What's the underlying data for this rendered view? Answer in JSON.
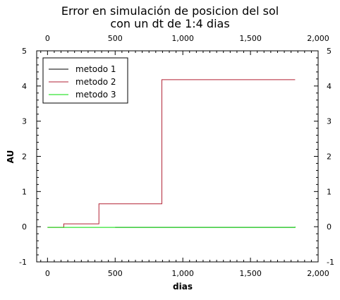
{
  "chart_data": {
    "type": "line",
    "title_line1": "Error en simulación de posicion del sol",
    "title_line2": "con un dt de 1:4 dias",
    "xlabel": "dias",
    "ylabel": "AU",
    "xlim": [
      -80,
      2000
    ],
    "ylim": [
      -1,
      5
    ],
    "x_ticks": [
      0,
      500,
      1000,
      1500,
      2000
    ],
    "x_tick_labels": [
      "0",
      "500",
      "1,000",
      "1,500",
      "2,000"
    ],
    "y_ticks": [
      -1,
      0,
      1,
      2,
      3,
      4,
      5
    ],
    "y_tick_labels": [
      "-1",
      "0",
      "1",
      "2",
      "3",
      "4",
      "5"
    ],
    "grid": false,
    "legend_position": "top-left",
    "series": [
      {
        "name": "metodo 1",
        "color": "#000000",
        "step": true,
        "x": [
          500,
          1830
        ],
        "y": [
          -0.02,
          -0.02
        ]
      },
      {
        "name": "metodo 2",
        "color": "#b22234",
        "step": true,
        "x": [
          0,
          120,
          380,
          845,
          1830
        ],
        "y": [
          -0.02,
          0.08,
          0.65,
          4.18,
          4.18
        ]
      },
      {
        "name": "metodo 3",
        "color": "#00dd00",
        "step": true,
        "x": [
          0,
          1830
        ],
        "y": [
          -0.02,
          0.0
        ]
      }
    ]
  }
}
